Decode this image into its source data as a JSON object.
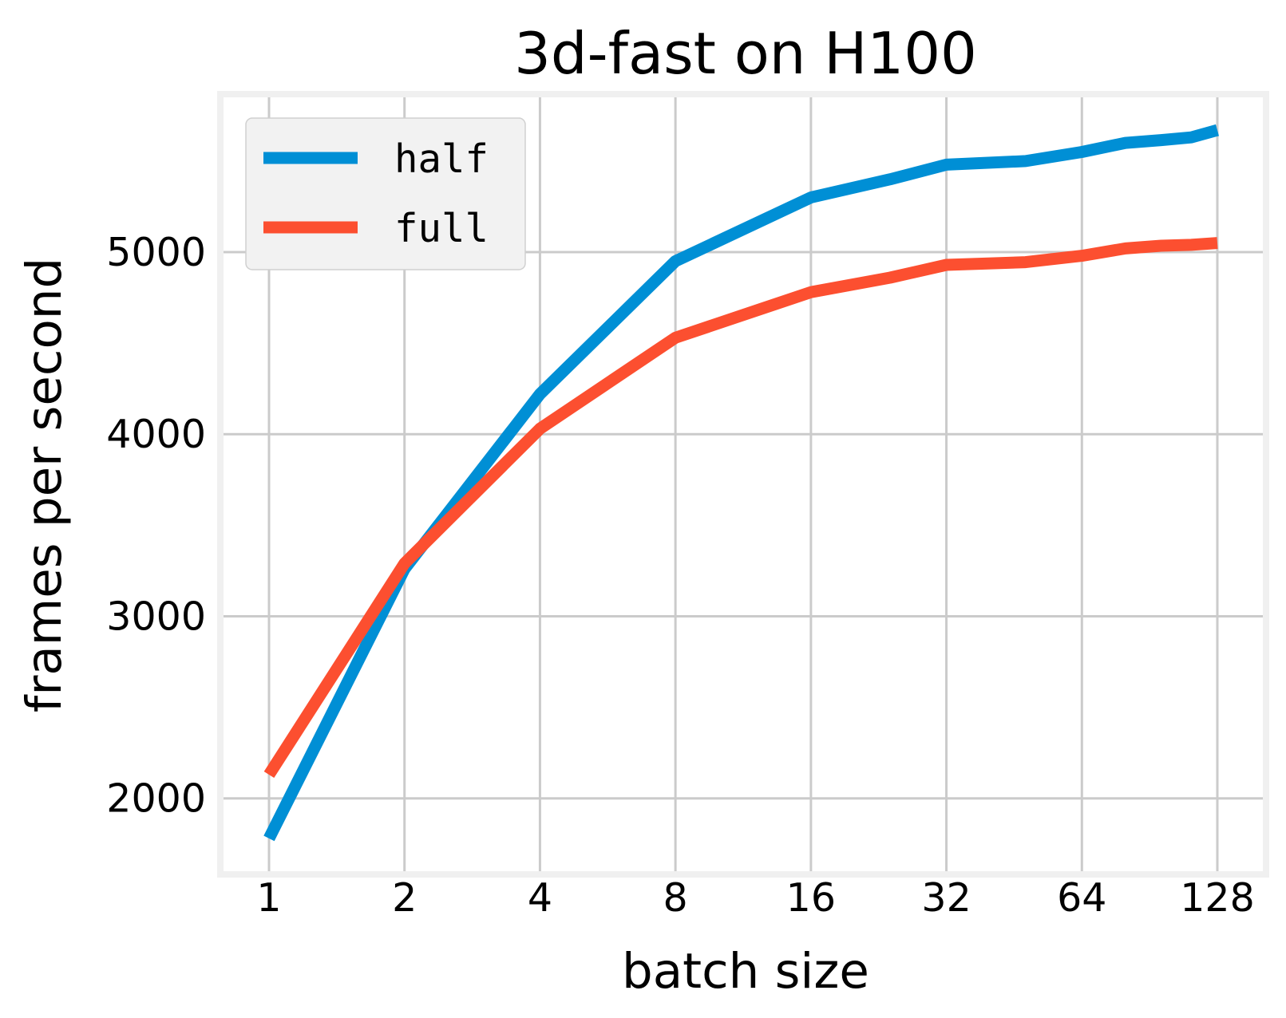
{
  "chart_data": {
    "type": "line",
    "title": "3d-fast on H100",
    "xlabel": "batch size",
    "ylabel": "frames per second",
    "x_scale": "log2",
    "xlim": [
      1,
      128
    ],
    "ylim": [
      1600,
      5850
    ],
    "x_ticks": [
      1,
      2,
      4,
      8,
      16,
      32,
      64,
      128
    ],
    "x_tick_labels": [
      "1",
      "2",
      "4",
      "8",
      "16",
      "32",
      "64",
      "128"
    ],
    "y_ticks": [
      2000,
      3000,
      4000,
      5000
    ],
    "y_tick_labels": [
      "2000",
      "3000",
      "4000",
      "5000"
    ],
    "grid": true,
    "legend_position": "upper-left",
    "series": [
      {
        "name": "half",
        "color": "#008fd5",
        "x": [
          1,
          2,
          4,
          8,
          16,
          24,
          32,
          48,
          64,
          80,
          96,
          112,
          128
        ],
        "y": [
          1780,
          3260,
          4220,
          4950,
          5300,
          5400,
          5480,
          5500,
          5550,
          5600,
          5615,
          5630,
          5670
        ]
      },
      {
        "name": "full",
        "color": "#fc4f30",
        "x": [
          1,
          2,
          4,
          8,
          16,
          24,
          32,
          48,
          64,
          80,
          96,
          112,
          128
        ],
        "y": [
          2130,
          3290,
          4030,
          4530,
          4780,
          4860,
          4930,
          4945,
          4980,
          5020,
          5035,
          5040,
          5050
        ]
      }
    ]
  }
}
